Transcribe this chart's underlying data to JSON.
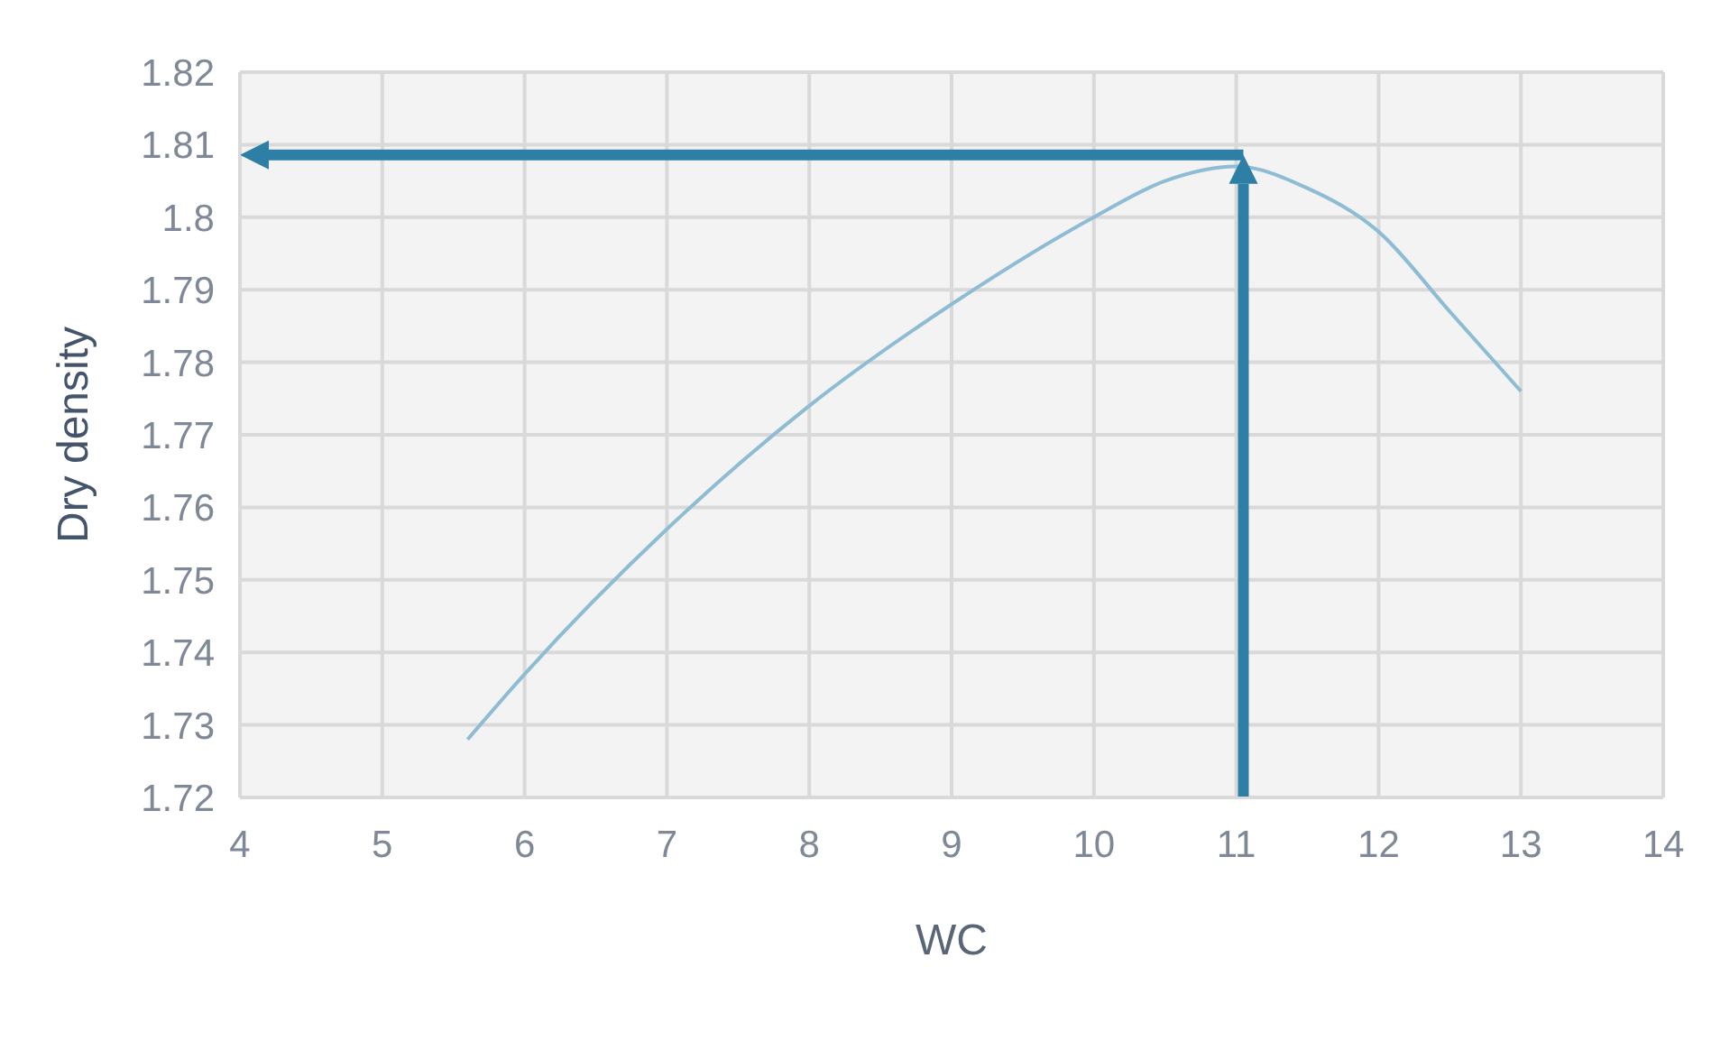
{
  "chart_data": {
    "type": "line",
    "xlabel": "WC",
    "ylabel": "Dry density",
    "x": [
      5.6,
      6,
      7,
      8,
      9,
      10,
      10.5,
      11,
      11.5,
      12,
      12.5,
      13
    ],
    "series": [
      {
        "color": "#8dbcd4",
        "values": [
          1.728,
          1.737,
          1.757,
          1.774,
          1.788,
          1.8,
          1.805,
          1.807,
          1.804,
          1.798,
          1.787,
          1.776
        ]
      }
    ],
    "xlim": [
      4,
      14
    ],
    "xticks": [
      4,
      5,
      6,
      7,
      8,
      9,
      10,
      11,
      12,
      13,
      14
    ],
    "ylim": [
      1.72,
      1.82
    ],
    "yticks": [
      1.72,
      1.73,
      1.74,
      1.75,
      1.76,
      1.77,
      1.78,
      1.79,
      1.8,
      1.81,
      1.82
    ],
    "grid": true,
    "marker": "none",
    "line_style": "solid",
    "ref_lines": [
      {
        "axis": "x",
        "value": 11.05,
        "color": "#2e7fa6"
      },
      {
        "axis": "y",
        "value": 1.8086,
        "color": "#2e7fa6"
      }
    ]
  }
}
